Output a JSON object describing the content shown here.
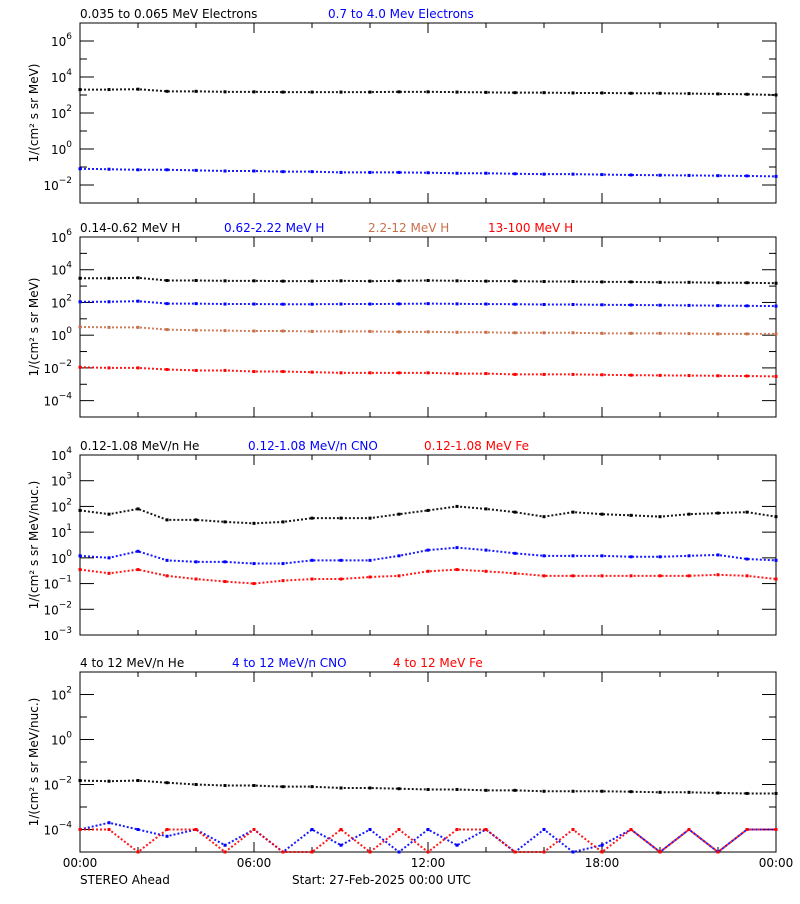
{
  "footer": {
    "left": "STEREO Ahead",
    "center": "Start: 27-Feb-2025 00:00 UTC"
  },
  "x_tick_labels": [
    "00:00",
    "06:00",
    "12:00",
    "18:00",
    "00:00"
  ],
  "chart_data": [
    {
      "type": "scatter",
      "ylabel": "1/(cm² s sr MeV)",
      "yscale": "log",
      "ylim": [
        0.001,
        10000000
      ],
      "y_tick_exponents": [
        -2,
        0,
        2,
        4,
        6
      ],
      "x_hours": [
        0,
        1,
        2,
        3,
        4,
        5,
        6,
        7,
        8,
        9,
        10,
        11,
        12,
        13,
        14,
        15,
        16,
        17,
        18,
        19,
        20,
        21,
        22,
        23,
        24
      ],
      "series": [
        {
          "name": "0.035 to 0.065 MeV Electrons",
          "color": "#000000",
          "values": [
            2000,
            2000,
            2100,
            1600,
            1600,
            1500,
            1500,
            1450,
            1450,
            1450,
            1450,
            1500,
            1500,
            1450,
            1400,
            1350,
            1350,
            1300,
            1300,
            1250,
            1250,
            1200,
            1150,
            1100,
            1000
          ]
        },
        {
          "name": "0.7 to 4.0 Mev Electrons",
          "color": "#0000ff",
          "values": [
            0.08,
            0.075,
            0.07,
            0.07,
            0.065,
            0.06,
            0.06,
            0.055,
            0.055,
            0.05,
            0.05,
            0.05,
            0.048,
            0.045,
            0.045,
            0.042,
            0.04,
            0.04,
            0.038,
            0.036,
            0.035,
            0.034,
            0.033,
            0.032,
            0.03
          ]
        }
      ]
    },
    {
      "type": "scatter",
      "ylabel": "1/(cm² s sr MeV)",
      "yscale": "log",
      "ylim": [
        1e-05,
        1000000
      ],
      "y_tick_exponents": [
        -4,
        -2,
        0,
        2,
        4,
        6
      ],
      "x_hours": [
        0,
        1,
        2,
        3,
        4,
        5,
        6,
        7,
        8,
        9,
        10,
        11,
        12,
        13,
        14,
        15,
        16,
        17,
        18,
        19,
        20,
        21,
        22,
        23,
        24
      ],
      "series": [
        {
          "name": "0.14-0.62 MeV H",
          "color": "#000000",
          "values": [
            3000,
            3000,
            3200,
            2200,
            2200,
            2100,
            2100,
            2000,
            2000,
            2100,
            2000,
            2100,
            2200,
            2100,
            2000,
            2000,
            1900,
            1900,
            1800,
            1800,
            1700,
            1700,
            1600,
            1600,
            1500
          ]
        },
        {
          "name": "0.62-2.22 MeV H",
          "color": "#0000ff",
          "values": [
            110,
            110,
            120,
            85,
            85,
            80,
            80,
            78,
            78,
            80,
            80,
            82,
            85,
            82,
            80,
            78,
            75,
            75,
            72,
            70,
            68,
            66,
            64,
            62,
            60
          ]
        },
        {
          "name": "2.2-12 MeV H",
          "color": "#c8704a",
          "values": [
            3.2,
            3.0,
            3.0,
            2.2,
            2.0,
            1.9,
            1.8,
            1.8,
            1.7,
            1.7,
            1.7,
            1.6,
            1.6,
            1.5,
            1.5,
            1.4,
            1.4,
            1.4,
            1.3,
            1.3,
            1.3,
            1.25,
            1.2,
            1.2,
            1.2
          ]
        },
        {
          "name": "13-100 MeV H",
          "color": "#ff0000",
          "values": [
            0.011,
            0.01,
            0.01,
            0.008,
            0.007,
            0.007,
            0.006,
            0.006,
            0.0055,
            0.005,
            0.005,
            0.005,
            0.005,
            0.0045,
            0.0045,
            0.004,
            0.004,
            0.004,
            0.0038,
            0.0036,
            0.0035,
            0.0034,
            0.0033,
            0.0032,
            0.003
          ]
        }
      ]
    },
    {
      "type": "scatter",
      "ylabel": "1/(cm² s sr MeV/nuc.)",
      "yscale": "log",
      "ylim": [
        0.001,
        10000
      ],
      "y_tick_exponents": [
        -3,
        -2,
        -1,
        0,
        1,
        2,
        3,
        4
      ],
      "x_hours": [
        0,
        1,
        2,
        3,
        4,
        5,
        6,
        7,
        8,
        9,
        10,
        11,
        12,
        13,
        14,
        15,
        16,
        17,
        18,
        19,
        20,
        21,
        22,
        23,
        24
      ],
      "series": [
        {
          "name": "0.12-1.08 MeV/n He",
          "color": "#000000",
          "values": [
            70,
            50,
            80,
            30,
            30,
            25,
            22,
            25,
            35,
            35,
            35,
            50,
            70,
            100,
            80,
            60,
            40,
            60,
            50,
            45,
            40,
            50,
            55,
            60,
            40
          ]
        },
        {
          "name": "0.12-1.08 MeV/n CNO",
          "color": "#0000ff",
          "values": [
            1.2,
            1.0,
            1.8,
            0.8,
            0.7,
            0.7,
            0.6,
            0.6,
            0.8,
            0.8,
            0.8,
            1.2,
            2.0,
            2.5,
            2.0,
            1.5,
            1.2,
            1.2,
            1.2,
            1.1,
            1.1,
            1.2,
            1.3,
            0.9,
            0.8
          ]
        },
        {
          "name": "0.12-1.08 MeV Fe",
          "color": "#ff0000",
          "values": [
            0.35,
            0.25,
            0.35,
            0.2,
            0.15,
            0.12,
            0.1,
            0.13,
            0.15,
            0.15,
            0.18,
            0.2,
            0.3,
            0.35,
            0.3,
            0.25,
            0.2,
            0.2,
            0.2,
            0.2,
            0.2,
            0.2,
            0.22,
            0.2,
            0.15
          ]
        }
      ]
    },
    {
      "type": "scatter",
      "ylabel": "1/(cm² s sr MeV/nuc.)",
      "yscale": "log",
      "ylim": [
        1e-05,
        1000
      ],
      "y_tick_exponents": [
        -4,
        -2,
        0,
        2
      ],
      "x_hours": [
        0,
        1,
        2,
        3,
        4,
        5,
        6,
        7,
        8,
        9,
        10,
        11,
        12,
        13,
        14,
        15,
        16,
        17,
        18,
        19,
        20,
        21,
        22,
        23,
        24
      ],
      "series": [
        {
          "name": "4 to 12 MeV/n He",
          "color": "#000000",
          "values": [
            0.015,
            0.014,
            0.015,
            0.012,
            0.01,
            0.009,
            0.009,
            0.008,
            0.008,
            0.007,
            0.007,
            0.0065,
            0.006,
            0.006,
            0.0055,
            0.0055,
            0.005,
            0.005,
            0.005,
            0.0048,
            0.0045,
            0.0045,
            0.0042,
            0.004,
            0.004
          ]
        },
        {
          "name": "4 to 12 MeV/n CNO",
          "color": "#0000ff",
          "values": [
            0.0001,
            0.0002,
            0.0001,
            5e-05,
            0.0001,
            2e-05,
            0.0001,
            1e-05,
            0.0001,
            2e-05,
            0.0001,
            1e-05,
            0.0001,
            2e-05,
            0.0001,
            1e-05,
            0.0001,
            1e-05,
            2e-05,
            0.0001,
            1e-05,
            0.0001,
            1e-05,
            0.0001,
            0.0001
          ]
        },
        {
          "name": "4 to 12 MeV Fe",
          "color": "#ff0000",
          "values": [
            0.0001,
            0.0001,
            1e-05,
            0.0001,
            0.0001,
            1e-05,
            0.0001,
            1e-05,
            1e-05,
            0.0001,
            1e-05,
            0.0001,
            1e-05,
            0.0001,
            0.0001,
            1e-05,
            1e-05,
            0.0001,
            1e-05,
            0.0001,
            1e-05,
            0.0001,
            1e-05,
            0.0001,
            0.0001
          ]
        }
      ]
    }
  ]
}
